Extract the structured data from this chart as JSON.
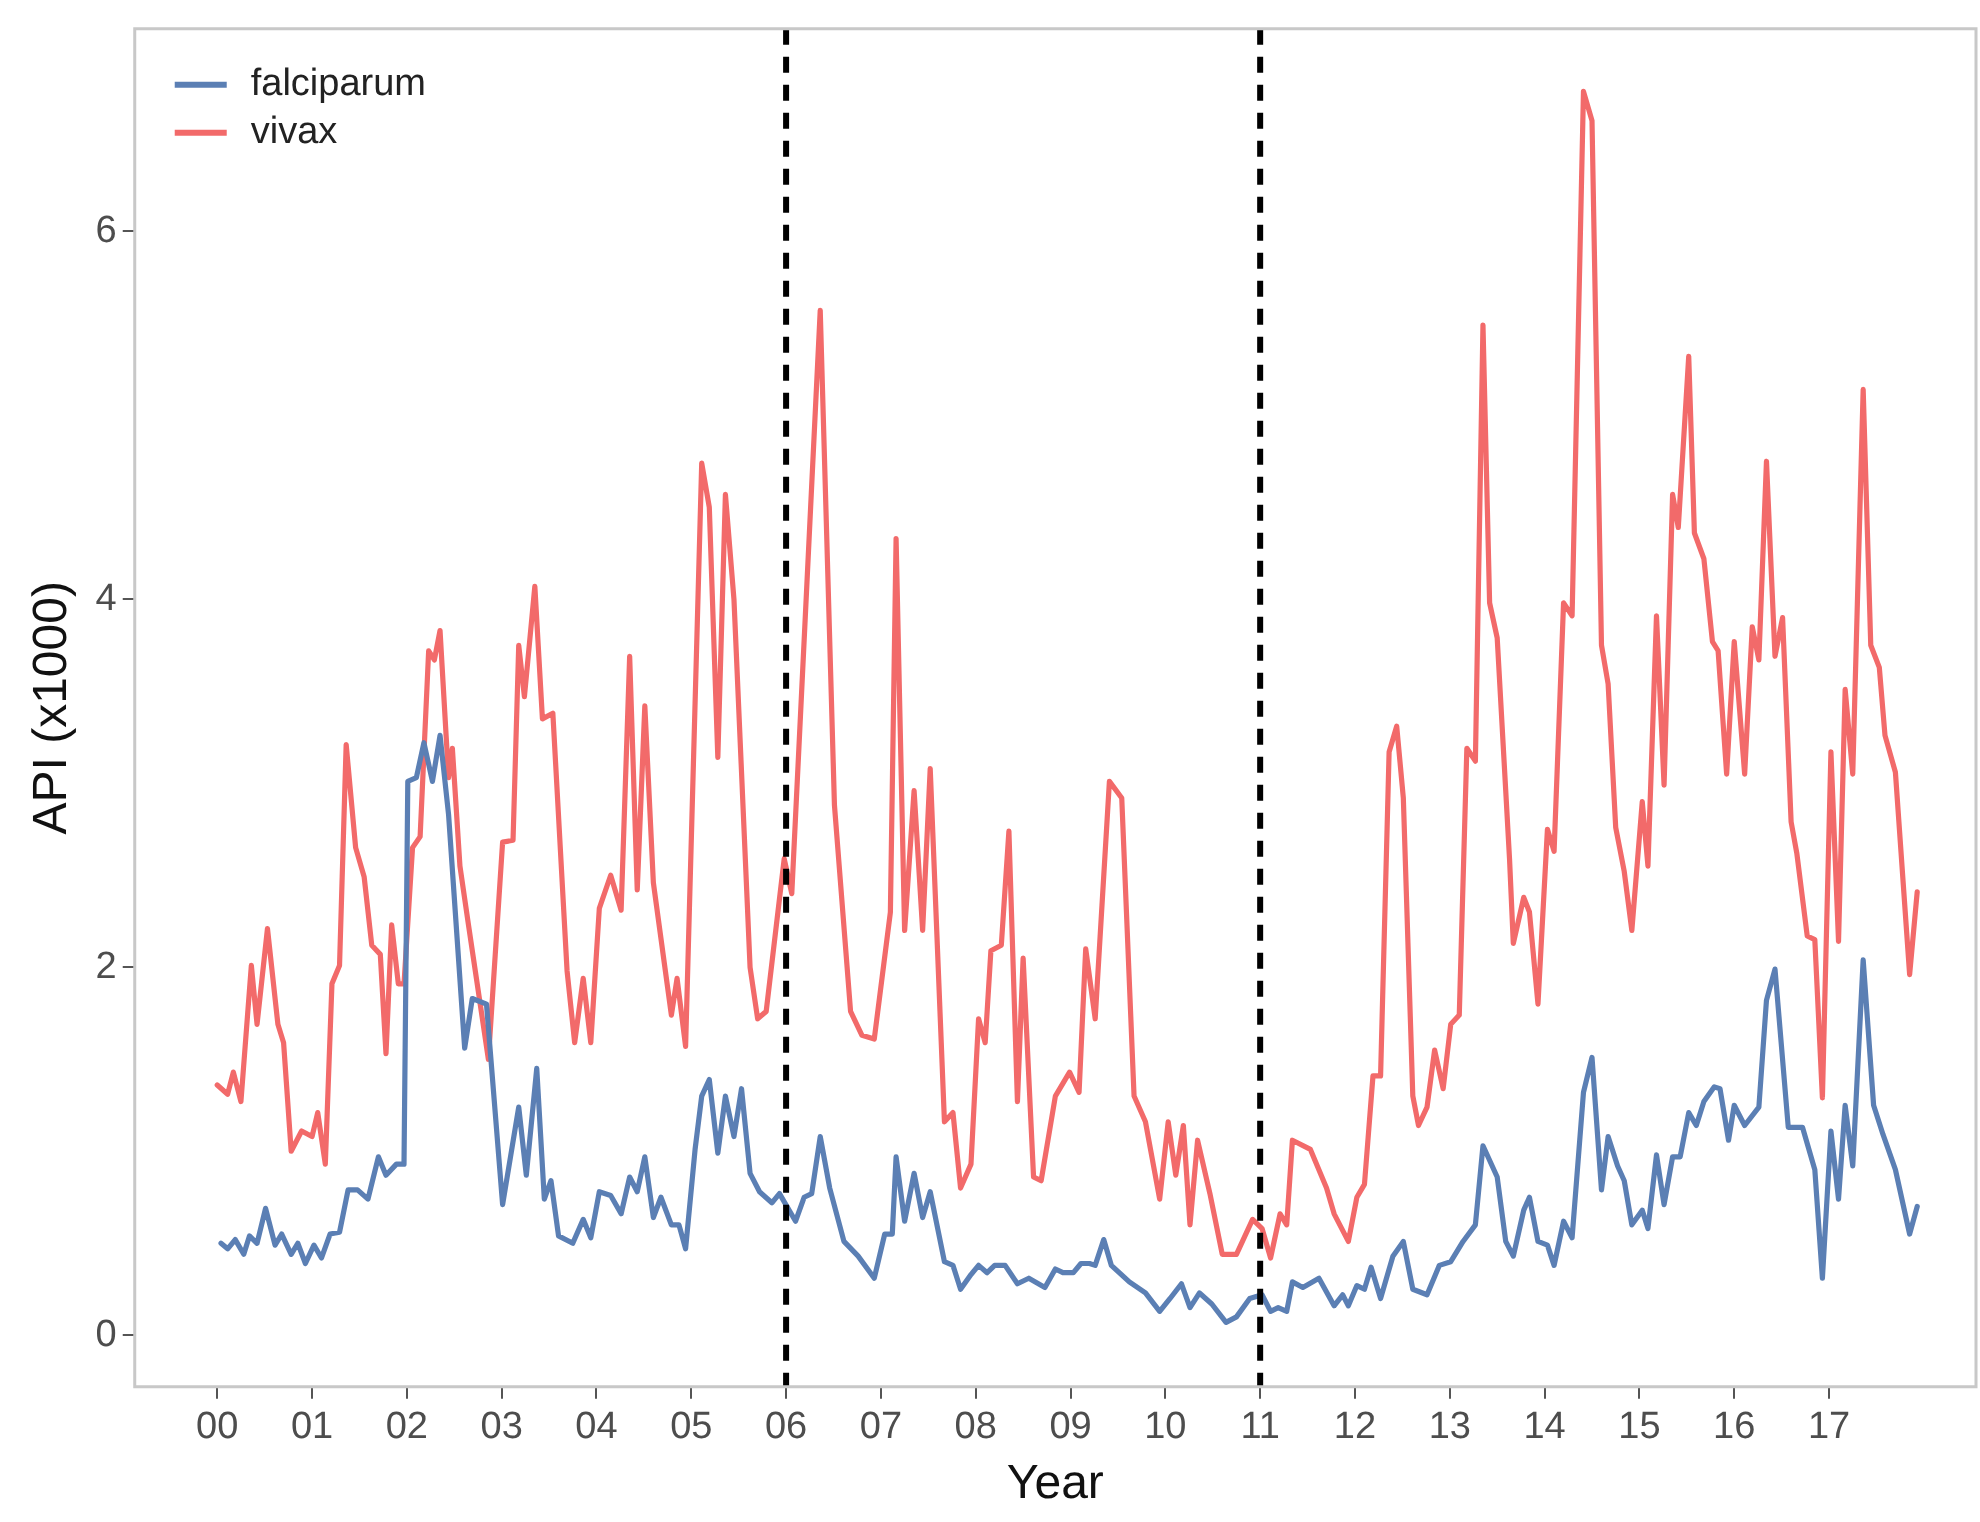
{
  "chart_data": {
    "type": "line",
    "xlabel": "Year",
    "ylabel": "API (x1000)",
    "xlim": [
      -0.87,
      18.55
    ],
    "ylim": [
      -0.28,
      7.1
    ],
    "xticks": [
      {
        "value": 0,
        "label": "00"
      },
      {
        "value": 1,
        "label": "01"
      },
      {
        "value": 2,
        "label": "02"
      },
      {
        "value": 3,
        "label": "03"
      },
      {
        "value": 4,
        "label": "04"
      },
      {
        "value": 5,
        "label": "05"
      },
      {
        "value": 6,
        "label": "06"
      },
      {
        "value": 7,
        "label": "07"
      },
      {
        "value": 8,
        "label": "08"
      },
      {
        "value": 9,
        "label": "09"
      },
      {
        "value": 10,
        "label": "10"
      },
      {
        "value": 11,
        "label": "11"
      },
      {
        "value": 12,
        "label": "12"
      },
      {
        "value": 13,
        "label": "13"
      },
      {
        "value": 14,
        "label": "14"
      },
      {
        "value": 15,
        "label": "15"
      },
      {
        "value": 16,
        "label": "16"
      },
      {
        "value": 17,
        "label": "17"
      }
    ],
    "yticks": [
      0,
      2,
      4,
      6
    ],
    "grid": false,
    "legend": "top left",
    "marker": "none",
    "line_style": "solid",
    "ref_lines": [
      {
        "axis": "x",
        "value": 6,
        "color": "#000000",
        "line_style": "dashed"
      },
      {
        "axis": "x",
        "value": 11,
        "color": "#000000",
        "line_style": "dashed"
      }
    ],
    "series": [
      {
        "name": "falciparum",
        "color": "#5b7fb4",
        "x": [
          0.04,
          0.11,
          0.19,
          0.28,
          0.34,
          0.42,
          0.51,
          0.61,
          0.68,
          0.78,
          0.85,
          0.93,
          1.02,
          1.1,
          1.19,
          1.29,
          1.38,
          1.48,
          1.59,
          1.7,
          1.78,
          1.89,
          1.97,
          2.01,
          2.1,
          2.18,
          2.27,
          2.35,
          2.44,
          2.61,
          2.69,
          2.84,
          3.01,
          3.18,
          3.26,
          3.37,
          3.45,
          3.52,
          3.6,
          3.75,
          3.86,
          3.94,
          4.03,
          4.15,
          4.26,
          4.35,
          4.43,
          4.51,
          4.6,
          4.68,
          4.79,
          4.87,
          4.94,
          5.04,
          5.11,
          5.19,
          5.28,
          5.36,
          5.45,
          5.53,
          5.62,
          5.72,
          5.85,
          5.93,
          6.1,
          6.19,
          6.27,
          6.36,
          6.46,
          6.61,
          6.76,
          6.93,
          7.04,
          7.12,
          7.16,
          7.25,
          7.35,
          7.44,
          7.52,
          7.67,
          7.76,
          7.84,
          7.95,
          8.03,
          8.12,
          8.2,
          8.31,
          8.44,
          8.56,
          8.73,
          8.84,
          8.92,
          9.03,
          9.11,
          9.2,
          9.26,
          9.35,
          9.43,
          9.62,
          9.79,
          9.94,
          10.05,
          10.17,
          10.26,
          10.36,
          10.49,
          10.64,
          10.75,
          10.89,
          11.02,
          11.11,
          11.19,
          11.28,
          11.34,
          11.45,
          11.62,
          11.78,
          11.87,
          11.93,
          12.02,
          12.1,
          12.17,
          12.27,
          12.4,
          12.51,
          12.61,
          12.76,
          12.89,
          13.01,
          13.14,
          13.27,
          13.35,
          13.5,
          13.59,
          13.67,
          13.78,
          13.84,
          13.93,
          14.03,
          14.1,
          14.2,
          14.29,
          14.41,
          14.5,
          14.6,
          14.67,
          14.77,
          14.84,
          14.92,
          15.03,
          15.09,
          15.18,
          15.26,
          15.35,
          15.43,
          15.52,
          15.6,
          15.68,
          15.79,
          15.85,
          15.94,
          16.0,
          16.11,
          16.26,
          16.34,
          16.43,
          16.57,
          16.72,
          16.85,
          16.93,
          17.02,
          17.1,
          17.17,
          17.25,
          17.36,
          17.47,
          17.57,
          17.7,
          17.85,
          17.93
        ],
        "values": [
          0.5,
          0.47,
          0.52,
          0.44,
          0.54,
          0.5,
          0.69,
          0.49,
          0.55,
          0.44,
          0.5,
          0.39,
          0.49,
          0.42,
          0.55,
          0.56,
          0.79,
          0.79,
          0.74,
          0.97,
          0.87,
          0.93,
          0.93,
          3.01,
          3.03,
          3.22,
          3.01,
          3.26,
          2.83,
          1.56,
          1.83,
          1.8,
          0.71,
          1.24,
          0.87,
          1.45,
          0.74,
          0.84,
          0.54,
          0.5,
          0.63,
          0.53,
          0.78,
          0.76,
          0.66,
          0.86,
          0.78,
          0.97,
          0.64,
          0.75,
          0.6,
          0.6,
          0.47,
          1.01,
          1.3,
          1.39,
          0.99,
          1.3,
          1.08,
          1.34,
          0.88,
          0.78,
          0.72,
          0.77,
          0.62,
          0.75,
          0.77,
          1.08,
          0.8,
          0.51,
          0.43,
          0.31,
          0.55,
          0.55,
          0.97,
          0.62,
          0.88,
          0.64,
          0.78,
          0.4,
          0.38,
          0.25,
          0.33,
          0.38,
          0.34,
          0.38,
          0.38,
          0.28,
          0.31,
          0.26,
          0.36,
          0.34,
          0.34,
          0.39,
          0.39,
          0.38,
          0.52,
          0.38,
          0.29,
          0.23,
          0.13,
          0.2,
          0.28,
          0.15,
          0.23,
          0.17,
          0.07,
          0.1,
          0.2,
          0.22,
          0.13,
          0.15,
          0.13,
          0.29,
          0.26,
          0.31,
          0.16,
          0.22,
          0.16,
          0.27,
          0.25,
          0.37,
          0.2,
          0.43,
          0.51,
          0.25,
          0.22,
          0.38,
          0.4,
          0.51,
          0.6,
          1.03,
          0.86,
          0.51,
          0.43,
          0.68,
          0.75,
          0.51,
          0.49,
          0.38,
          0.62,
          0.53,
          1.32,
          1.51,
          0.79,
          1.08,
          0.92,
          0.84,
          0.6,
          0.68,
          0.58,
          0.98,
          0.71,
          0.97,
          0.97,
          1.21,
          1.14,
          1.27,
          1.35,
          1.34,
          1.06,
          1.25,
          1.14,
          1.24,
          1.82,
          1.99,
          1.13,
          1.13,
          0.9,
          0.31,
          1.11,
          0.74,
          1.25,
          0.92,
          2.04,
          1.25,
          1.09,
          0.9,
          0.55,
          0.7
        ]
      },
      {
        "name": "vivax",
        "color": "#f26a6a",
        "x": [
          0,
          0.11,
          0.17,
          0.25,
          0.36,
          0.42,
          0.53,
          0.64,
          0.7,
          0.78,
          0.89,
          1.0,
          1.06,
          1.14,
          1.21,
          1.29,
          1.36,
          1.46,
          1.55,
          1.63,
          1.72,
          1.78,
          1.84,
          1.91,
          1.97,
          2.06,
          2.14,
          2.23,
          2.29,
          2.35,
          2.44,
          2.48,
          2.56,
          2.65,
          2.86,
          3.01,
          3.12,
          3.18,
          3.24,
          3.35,
          3.43,
          3.54,
          3.69,
          3.77,
          3.86,
          3.94,
          4.03,
          4.15,
          4.26,
          4.35,
          4.43,
          4.51,
          4.6,
          4.79,
          4.85,
          4.94,
          5.11,
          5.19,
          5.28,
          5.36,
          5.45,
          5.62,
          5.7,
          5.79,
          5.98,
          6.06,
          6.36,
          6.51,
          6.68,
          6.8,
          6.93,
          7.1,
          7.16,
          7.25,
          7.35,
          7.44,
          7.52,
          7.67,
          7.76,
          7.84,
          7.95,
          8.03,
          8.1,
          8.16,
          8.27,
          8.35,
          8.44,
          8.5,
          8.61,
          8.69,
          8.84,
          8.99,
          9.09,
          9.16,
          9.26,
          9.41,
          9.54,
          9.67,
          9.79,
          9.94,
          10.03,
          10.11,
          10.19,
          10.26,
          10.34,
          10.47,
          10.6,
          10.75,
          10.92,
          11.02,
          11.11,
          11.21,
          11.28,
          11.34,
          11.53,
          11.7,
          11.78,
          11.93,
          12.02,
          12.1,
          12.19,
          12.27,
          12.36,
          12.44,
          12.51,
          12.61,
          12.67,
          12.76,
          12.84,
          12.93,
          13.01,
          13.1,
          13.18,
          13.27,
          13.35,
          13.42,
          13.5,
          13.63,
          13.67,
          13.78,
          13.84,
          13.93,
          14.03,
          14.1,
          14.2,
          14.29,
          14.41,
          14.5,
          14.6,
          14.67,
          14.75,
          14.84,
          14.92,
          15.03,
          15.09,
          15.18,
          15.26,
          15.35,
          15.41,
          15.52,
          15.58,
          15.68,
          15.77,
          15.83,
          15.92,
          16.0,
          16.11,
          16.19,
          16.26,
          16.34,
          16.43,
          16.51,
          16.6,
          16.66,
          16.77,
          16.85,
          16.93,
          17.02,
          17.1,
          17.17,
          17.25,
          17.36,
          17.44,
          17.53,
          17.59,
          17.7,
          17.85,
          17.93
        ],
        "values": [
          1.36,
          1.31,
          1.43,
          1.27,
          2.01,
          1.69,
          2.21,
          1.69,
          1.59,
          1.0,
          1.11,
          1.08,
          1.21,
          0.93,
          1.91,
          2.01,
          3.21,
          2.65,
          2.49,
          2.12,
          2.07,
          1.53,
          2.23,
          1.91,
          1.91,
          2.65,
          2.71,
          3.72,
          3.67,
          3.83,
          3.03,
          3.19,
          2.55,
          2.23,
          1.5,
          2.68,
          2.69,
          3.75,
          3.47,
          4.07,
          3.35,
          3.38,
          1.98,
          1.59,
          1.94,
          1.59,
          2.32,
          2.5,
          2.31,
          3.69,
          2.42,
          3.42,
          2.46,
          1.74,
          1.94,
          1.57,
          4.74,
          4.5,
          3.14,
          4.57,
          4.0,
          2.0,
          1.72,
          1.76,
          2.59,
          2.4,
          5.57,
          2.88,
          1.76,
          1.63,
          1.61,
          2.3,
          4.33,
          2.2,
          2.96,
          2.2,
          3.08,
          1.16,
          1.21,
          0.8,
          0.93,
          1.72,
          1.59,
          2.09,
          2.12,
          2.74,
          1.27,
          2.05,
          0.86,
          0.84,
          1.3,
          1.43,
          1.32,
          2.1,
          1.72,
          3.01,
          2.92,
          1.3,
          1.16,
          0.74,
          1.16,
          0.87,
          1.14,
          0.6,
          1.06,
          0.77,
          0.44,
          0.44,
          0.63,
          0.58,
          0.42,
          0.66,
          0.6,
          1.06,
          1.01,
          0.8,
          0.66,
          0.51,
          0.75,
          0.82,
          1.41,
          1.41,
          3.17,
          3.31,
          2.92,
          1.3,
          1.14,
          1.24,
          1.55,
          1.34,
          1.69,
          1.74,
          3.19,
          3.12,
          5.49,
          3.98,
          3.79,
          2.59,
          2.13,
          2.38,
          2.3,
          1.8,
          2.75,
          2.63,
          3.98,
          3.91,
          6.76,
          6.6,
          3.75,
          3.54,
          2.76,
          2.52,
          2.2,
          2.9,
          2.55,
          3.91,
          2.99,
          4.57,
          4.39,
          5.32,
          4.36,
          4.22,
          3.77,
          3.72,
          3.05,
          3.77,
          3.05,
          3.85,
          3.67,
          4.75,
          3.69,
          3.9,
          2.79,
          2.62,
          2.17,
          2.15,
          1.29,
          3.17,
          2.14,
          3.51,
          3.05,
          5.14,
          3.75,
          3.63,
          3.26,
          3.06,
          1.96,
          2.41
        ]
      }
    ]
  }
}
